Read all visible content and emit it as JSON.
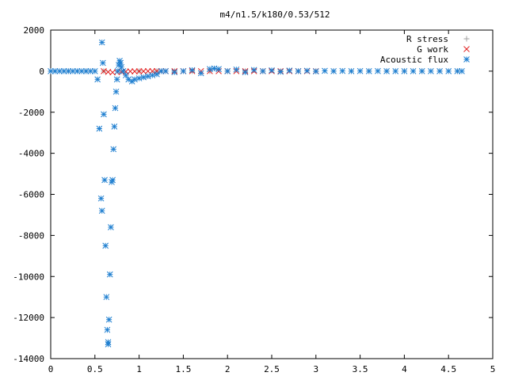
{
  "chart_data": {
    "type": "scatter",
    "title": "m4/n1.5/k180/0.53/512",
    "xlabel": "",
    "ylabel": "",
    "xlim": [
      0,
      5
    ],
    "ylim": [
      -14000,
      2000
    ],
    "grid": false,
    "legend_position": "top-right",
    "x_ticks": [
      0,
      0.5,
      1,
      1.5,
      2,
      2.5,
      3,
      3.5,
      4,
      4.5,
      5
    ],
    "x_tick_labels": [
      "0",
      "0.5",
      "1",
      "1.5",
      "2",
      "2.5",
      "3",
      "3.5",
      "4",
      "4.5",
      "5"
    ],
    "y_ticks": [
      -14000,
      -12000,
      -10000,
      -8000,
      -6000,
      -4000,
      -2000,
      0,
      2000
    ],
    "y_tick_labels": [
      "-14000",
      "-12000",
      "-10000",
      "-8000",
      "-6000",
      "-4000",
      "-2000",
      "0",
      "2000"
    ],
    "series": [
      {
        "name": "R stress",
        "marker": "plus",
        "color": "#a0a0a0",
        "x": [
          0.0,
          0.2,
          0.4,
          0.6,
          0.8,
          1.0,
          1.2,
          1.4,
          1.6,
          1.8,
          2.0,
          2.2,
          2.4,
          2.6,
          2.8,
          3.0,
          3.2,
          3.4,
          3.6,
          3.8,
          4.0,
          4.2,
          4.4,
          4.6
        ],
        "y": [
          0,
          0,
          0,
          0,
          0,
          0,
          0,
          0,
          0,
          0,
          0,
          0,
          0,
          0,
          0,
          0,
          0,
          0,
          0,
          0,
          0,
          0,
          0,
          0
        ]
      },
      {
        "name": "G work",
        "marker": "cross",
        "color": "#e02020",
        "x": [
          0.6,
          0.65,
          0.7,
          0.75,
          0.8,
          0.85,
          0.9,
          0.95,
          1.0,
          1.05,
          1.1,
          1.15,
          1.2,
          1.25,
          1.3,
          1.4,
          1.5,
          1.6,
          1.7,
          1.8,
          1.9,
          2.0,
          2.1,
          2.2,
          2.3,
          2.4,
          2.5,
          2.6,
          2.7,
          2.8,
          2.9,
          3.0
        ],
        "y": [
          0,
          -40,
          -60,
          -50,
          -30,
          -20,
          -10,
          -10,
          -5,
          -5,
          0,
          0,
          0,
          0,
          0,
          0,
          0,
          0,
          0,
          0,
          0,
          0,
          0,
          0,
          0,
          0,
          0,
          0,
          0,
          0,
          0,
          0
        ]
      },
      {
        "name": "Acoustic flux",
        "marker": "star",
        "color": "#1f7fd0",
        "x": [
          0.0,
          0.05,
          0.1,
          0.15,
          0.2,
          0.25,
          0.3,
          0.35,
          0.4,
          0.45,
          0.5,
          0.53,
          0.55,
          0.57,
          0.58,
          0.58,
          0.59,
          0.6,
          0.61,
          0.62,
          0.63,
          0.64,
          0.65,
          0.65,
          0.66,
          0.67,
          0.68,
          0.69,
          0.7,
          0.71,
          0.72,
          0.73,
          0.74,
          0.75,
          0.76,
          0.77,
          0.78,
          0.79,
          0.8,
          0.82,
          0.85,
          0.88,
          0.92,
          0.95,
          1.0,
          1.05,
          1.1,
          1.15,
          1.2,
          1.25,
          1.3,
          1.4,
          1.5,
          1.6,
          1.7,
          1.8,
          1.85,
          1.9,
          2.0,
          2.1,
          2.2,
          2.3,
          2.4,
          2.5,
          2.6,
          2.7,
          2.8,
          2.9,
          3.0,
          3.1,
          3.2,
          3.3,
          3.4,
          3.5,
          3.6,
          3.7,
          3.8,
          3.9,
          4.0,
          4.1,
          4.2,
          4.3,
          4.4,
          4.5,
          4.6,
          4.65
        ],
        "y": [
          0,
          0,
          0,
          0,
          0,
          0,
          0,
          0,
          0,
          0,
          0,
          -400,
          -2800,
          -6200,
          -6800,
          1400,
          400,
          -2100,
          -5300,
          -8500,
          -11000,
          -12600,
          -13300,
          -13200,
          -12100,
          -9900,
          -7600,
          -5400,
          -5300,
          -3800,
          -2700,
          -1800,
          -1000,
          -400,
          0,
          300,
          500,
          400,
          200,
          0,
          -200,
          -400,
          -500,
          -400,
          -350,
          -300,
          -250,
          -200,
          -150,
          0,
          0,
          -50,
          0,
          50,
          -100,
          100,
          130,
          100,
          0,
          80,
          -50,
          60,
          0,
          40,
          -30,
          30,
          0,
          20,
          -10,
          15,
          0,
          10,
          0,
          5,
          0,
          5,
          0,
          0,
          0,
          0,
          0,
          0,
          0,
          0,
          0,
          0
        ]
      }
    ]
  }
}
